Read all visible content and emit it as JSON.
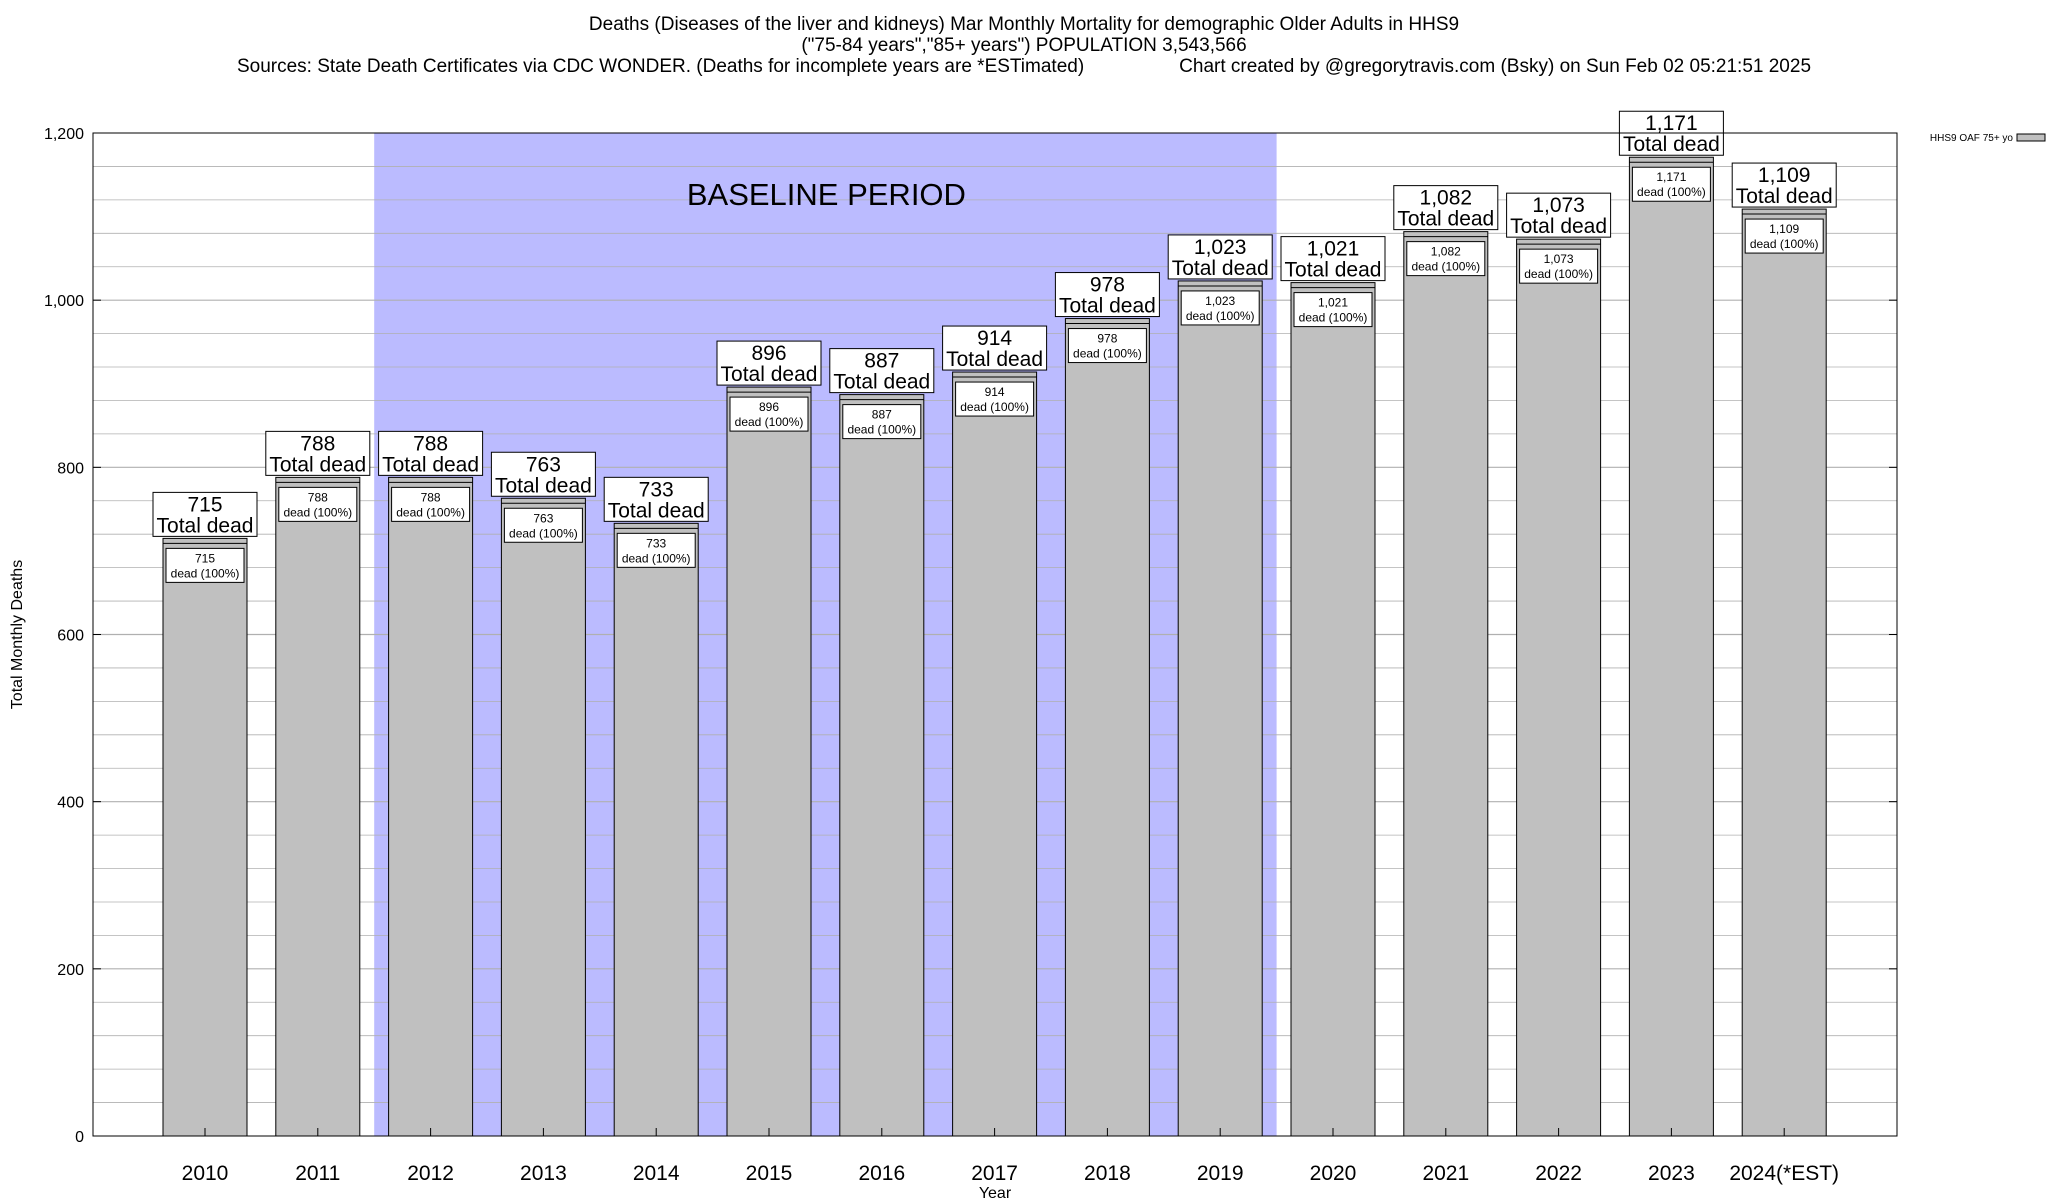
{
  "header": {
    "title": "Deaths (Diseases of the liver and kidneys) Mar Monthly Mortality for demographic Older Adults in HHS9",
    "subtitle": "(\"75-84 years\",\"85+ years\") POPULATION 3,543,566",
    "sources": "Sources: State Death Certificates via CDC WONDER. (Deaths for incomplete years are *ESTimated)",
    "credit": "Chart created by @gregorytravis.com (Bsky) on Sun Feb 02 05:21:51 2025"
  },
  "colors": {
    "bar_fill": "#c0c0c0",
    "bar_stroke": "#000000",
    "baseline_fill": "#bbbbff",
    "grid": "#b0b0b0"
  },
  "chart_data": {
    "type": "bar",
    "xlabel": "Year",
    "ylabel": "Total Monthly Deaths",
    "ylim": [
      0,
      1200
    ],
    "y_ticks": [
      0,
      200,
      400,
      600,
      800,
      1000,
      1200
    ],
    "y_tick_labels": [
      "0",
      "200",
      "400",
      "600",
      "800",
      "1,000",
      "1,200"
    ],
    "grid": true,
    "legend": {
      "position": "top-right",
      "entries": [
        "HHS9 OAF 75+ yo"
      ]
    },
    "categories": [
      "2010",
      "2011",
      "2012",
      "2013",
      "2014",
      "2015",
      "2016",
      "2017",
      "2018",
      "2019",
      "2020",
      "2021",
      "2022",
      "2023",
      "2024(*EST)"
    ],
    "series": [
      {
        "name": "HHS9 OAF 75+ yo",
        "values": [
          715,
          788,
          788,
          763,
          733,
          896,
          887,
          914,
          978,
          1023,
          1021,
          1082,
          1073,
          1171,
          1109
        ]
      }
    ],
    "value_labels": [
      "715",
      "788",
      "788",
      "763",
      "733",
      "896",
      "887",
      "914",
      "978",
      "1,023",
      "1,021",
      "1,082",
      "1,073",
      "1,171",
      "1,109"
    ],
    "total_label": "Total dead",
    "inner_label": "dead (100%)",
    "baseline": {
      "label": "BASELINE PERIOD",
      "start": "2012",
      "end": "2019"
    }
  }
}
